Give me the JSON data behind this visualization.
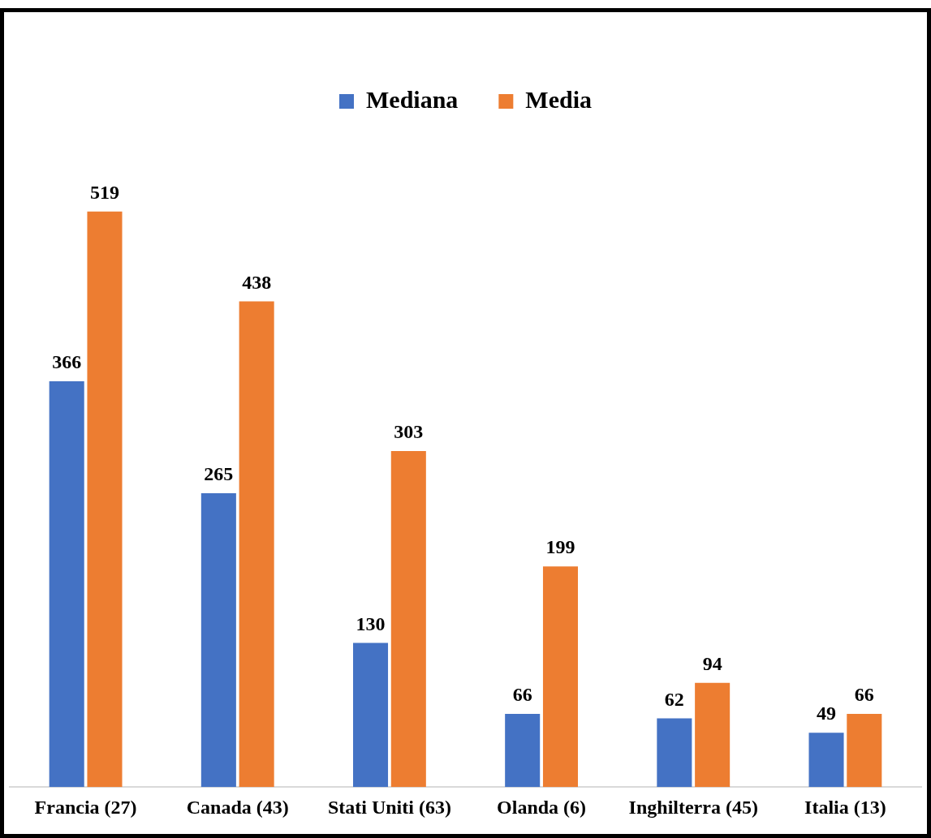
{
  "chart_data": {
    "type": "bar",
    "categories": [
      "Francia (27)",
      "Canada (43)",
      "Stati Uniti (63)",
      "Olanda (6)",
      "Inghilterra (45)",
      "Italia (13)"
    ],
    "series": [
      {
        "name": "Mediana",
        "color": "#4472c4",
        "values": [
          366,
          265,
          130,
          66,
          62,
          49
        ]
      },
      {
        "name": "Media",
        "color": "#ed7d31",
        "values": [
          519,
          438,
          303,
          199,
          94,
          66
        ]
      }
    ],
    "data_labels": true,
    "legend": "top",
    "grid": false
  }
}
